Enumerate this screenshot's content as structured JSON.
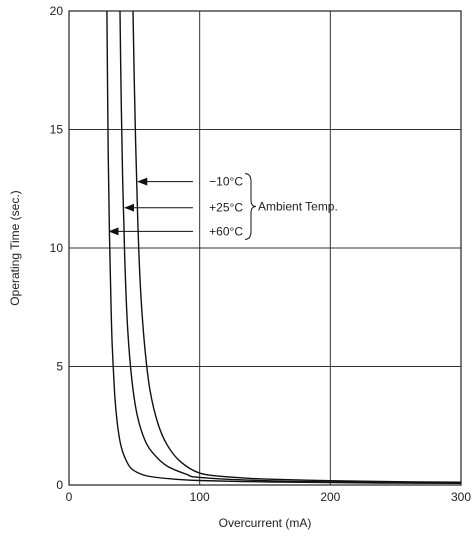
{
  "chart_data": {
    "type": "line",
    "title": "",
    "xlabel": "Overcurrent (mA)",
    "ylabel": "Operating Time (sec.)",
    "xlim": [
      0,
      300
    ],
    "ylim": [
      0,
      20
    ],
    "xticks": [
      0,
      100,
      200,
      300
    ],
    "yticks": [
      0,
      5,
      10,
      15,
      20
    ],
    "grid": true,
    "series": [
      {
        "name": "+60°C",
        "x": [
          29,
          30,
          31,
          32,
          33,
          35,
          37,
          40,
          45,
          50,
          60,
          80,
          100,
          150,
          200,
          250,
          300
        ],
        "y": [
          20,
          14,
          10.5,
          8,
          6,
          3.8,
          2.6,
          1.6,
          0.9,
          0.6,
          0.38,
          0.25,
          0.19,
          0.13,
          0.1,
          0.08,
          0.07
        ]
      },
      {
        "name": "+25°C",
        "x": [
          39,
          40,
          41,
          42,
          43,
          45,
          48,
          52,
          58,
          65,
          75,
          90,
          100,
          150,
          200,
          250,
          300
        ],
        "y": [
          20,
          16,
          13,
          11,
          9,
          6.5,
          4.5,
          3.0,
          1.9,
          1.3,
          0.8,
          0.45,
          0.32,
          0.18,
          0.13,
          0.1,
          0.09
        ]
      },
      {
        "name": "−10°C",
        "x": [
          49,
          50,
          51,
          52,
          53,
          55,
          58,
          62,
          68,
          75,
          85,
          100,
          120,
          150,
          200,
          250,
          300
        ],
        "y": [
          20,
          17,
          14.5,
          12.5,
          10.5,
          8.0,
          5.8,
          4.0,
          2.6,
          1.7,
          1.0,
          0.5,
          0.35,
          0.25,
          0.18,
          0.14,
          0.12
        ]
      }
    ],
    "annotations": {
      "labels": [
        "−10°C",
        "+25°C",
        "+60°C"
      ],
      "arrow_targets": [
        {
          "x": 53,
          "y": 12.8
        },
        {
          "x": 43,
          "y": 11.7
        },
        {
          "x": 31,
          "y": 10.7
        }
      ],
      "group_label": "Ambient Temp."
    }
  }
}
